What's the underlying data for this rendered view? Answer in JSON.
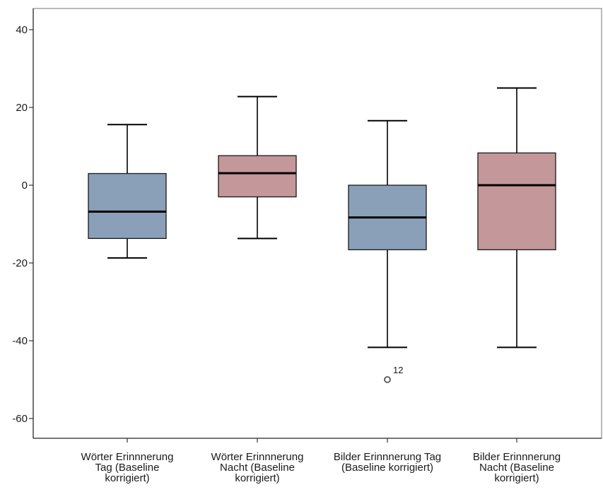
{
  "chart_data": {
    "type": "boxplot",
    "title": "",
    "xlabel": "",
    "ylabel": "",
    "ylim": [
      -65,
      45
    ],
    "yticks": [
      40,
      20,
      0,
      -20,
      -40,
      -60
    ],
    "grid": false,
    "categories": [
      [
        "Wörter Erinnnerung",
        "Tag (Baseline",
        "korrigiert)"
      ],
      [
        "Wörter Erinnnerung",
        "Nacht (Baseline",
        "korrigiert)"
      ],
      [
        "Bilder Erinnnerung Tag",
        "(Baseline korrigiert)"
      ],
      [
        "Bilder Erinnnerung",
        "Nacht (Baseline",
        "korrigiert)"
      ]
    ],
    "boxes": [
      {
        "whisker_low": -18.7,
        "q1": -13.7,
        "median": -6.8,
        "q3": 3.0,
        "whisker_high": 15.6,
        "color": "#8aa0b8",
        "outliers": []
      },
      {
        "whisker_low": -13.7,
        "q1": -3.0,
        "median": 3.1,
        "q3": 7.6,
        "whisker_high": 22.8,
        "color": "#c4979b",
        "outliers": []
      },
      {
        "whisker_low": -41.7,
        "q1": -16.6,
        "median": -8.3,
        "q3": 0.0,
        "whisker_high": 16.6,
        "color": "#8aa0b8",
        "outliers": [
          {
            "value": -50.0,
            "label": "12"
          }
        ]
      },
      {
        "whisker_low": -41.7,
        "q1": -16.6,
        "median": 0.0,
        "q3": 8.3,
        "whisker_high": 25.0,
        "color": "#c4979b",
        "outliers": []
      }
    ]
  }
}
